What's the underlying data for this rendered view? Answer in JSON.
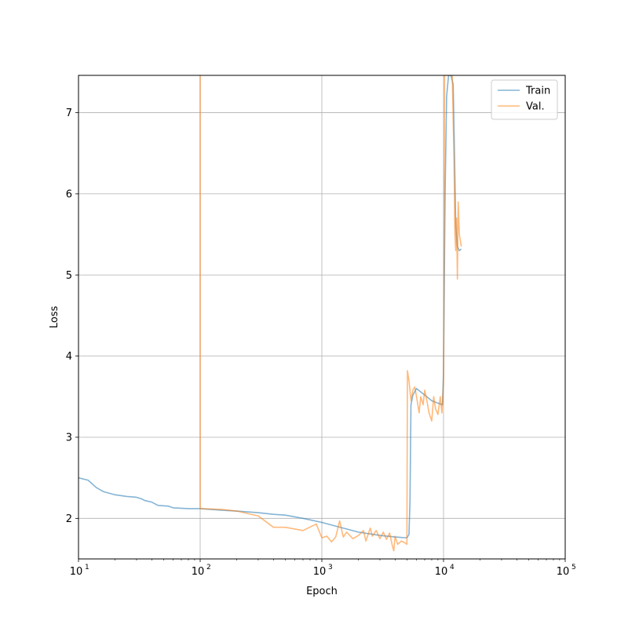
{
  "chart_data": {
    "type": "line",
    "xlabel": "Epoch",
    "ylabel": "Loss",
    "xscale": "log",
    "xlim": [
      10,
      100000
    ],
    "ylim": [
      1.5,
      7.46
    ],
    "grid": true,
    "legend_position": "top-right",
    "xticks": [
      {
        "value": 10,
        "label": "10",
        "exp": "1"
      },
      {
        "value": 100,
        "label": "10",
        "exp": "2"
      },
      {
        "value": 1000,
        "label": "10",
        "exp": "3"
      },
      {
        "value": 10000,
        "label": "10",
        "exp": "4"
      },
      {
        "value": 100000,
        "label": "10",
        "exp": "5"
      }
    ],
    "yticks": [
      {
        "value": 2,
        "label": "2"
      },
      {
        "value": 3,
        "label": "3"
      },
      {
        "value": 4,
        "label": "4"
      },
      {
        "value": 5,
        "label": "5"
      },
      {
        "value": 6,
        "label": "6"
      },
      {
        "value": 7,
        "label": "7"
      }
    ],
    "series": [
      {
        "name": "Train",
        "color": "#1f77b4",
        "points": [
          [
            10,
            2.5
          ],
          [
            12,
            2.47
          ],
          [
            14,
            2.38
          ],
          [
            16,
            2.33
          ],
          [
            20,
            2.29
          ],
          [
            25,
            2.27
          ],
          [
            30,
            2.26
          ],
          [
            33,
            2.24
          ],
          [
            35,
            2.22
          ],
          [
            40,
            2.2
          ],
          [
            45,
            2.16
          ],
          [
            55,
            2.15
          ],
          [
            60,
            2.13
          ],
          [
            80,
            2.12
          ],
          [
            100,
            2.12
          ],
          [
            150,
            2.1
          ],
          [
            200,
            2.09
          ],
          [
            300,
            2.07
          ],
          [
            400,
            2.05
          ],
          [
            500,
            2.04
          ],
          [
            700,
            2.0
          ],
          [
            1000,
            1.95
          ],
          [
            1500,
            1.88
          ],
          [
            2000,
            1.83
          ],
          [
            3000,
            1.79
          ],
          [
            4000,
            1.77
          ],
          [
            5000,
            1.76
          ],
          [
            5200,
            1.8
          ],
          [
            5300,
            2.2
          ],
          [
            5400,
            3.4
          ],
          [
            5600,
            3.52
          ],
          [
            6000,
            3.6
          ],
          [
            7000,
            3.52
          ],
          [
            8000,
            3.45
          ],
          [
            9000,
            3.42
          ],
          [
            9800,
            3.4
          ],
          [
            10000,
            3.8
          ],
          [
            10300,
            6.0
          ],
          [
            10600,
            7.2
          ],
          [
            11000,
            7.46
          ],
          [
            11500,
            7.46
          ],
          [
            12000,
            7.35
          ],
          [
            12300,
            6.5
          ],
          [
            12600,
            5.6
          ],
          [
            13000,
            5.35
          ],
          [
            13500,
            5.3
          ],
          [
            14000,
            5.32
          ]
        ]
      },
      {
        "name": "Val.",
        "color": "#ff7f0e",
        "points": [
          [
            100,
            7.46
          ],
          [
            100,
            2.12
          ],
          [
            150,
            2.11
          ],
          [
            200,
            2.09
          ],
          [
            300,
            2.03
          ],
          [
            400,
            1.89
          ],
          [
            500,
            1.89
          ],
          [
            700,
            1.85
          ],
          [
            900,
            1.93
          ],
          [
            1000,
            1.76
          ],
          [
            1100,
            1.78
          ],
          [
            1200,
            1.71
          ],
          [
            1300,
            1.77
          ],
          [
            1400,
            1.97
          ],
          [
            1500,
            1.77
          ],
          [
            1600,
            1.83
          ],
          [
            1800,
            1.75
          ],
          [
            2000,
            1.79
          ],
          [
            2200,
            1.85
          ],
          [
            2300,
            1.72
          ],
          [
            2500,
            1.88
          ],
          [
            2600,
            1.78
          ],
          [
            2800,
            1.85
          ],
          [
            3000,
            1.75
          ],
          [
            3200,
            1.83
          ],
          [
            3400,
            1.74
          ],
          [
            3600,
            1.82
          ],
          [
            3800,
            1.66
          ],
          [
            3900,
            1.6
          ],
          [
            4000,
            1.78
          ],
          [
            4200,
            1.68
          ],
          [
            4500,
            1.72
          ],
          [
            4800,
            1.7
          ],
          [
            5000,
            1.68
          ],
          [
            5050,
            3.82
          ],
          [
            5200,
            3.7
          ],
          [
            5400,
            3.45
          ],
          [
            5600,
            3.58
          ],
          [
            5800,
            3.62
          ],
          [
            6000,
            3.5
          ],
          [
            6300,
            3.3
          ],
          [
            6500,
            3.5
          ],
          [
            6800,
            3.4
          ],
          [
            7000,
            3.58
          ],
          [
            7300,
            3.45
          ],
          [
            7600,
            3.3
          ],
          [
            8000,
            3.2
          ],
          [
            8300,
            3.5
          ],
          [
            8600,
            3.35
          ],
          [
            9000,
            3.28
          ],
          [
            9400,
            3.5
          ],
          [
            9700,
            3.3
          ],
          [
            10000,
            3.65
          ],
          [
            10200,
            7.46
          ],
          [
            11200,
            7.46
          ],
          [
            11800,
            7.46
          ],
          [
            12200,
            6.4
          ],
          [
            12400,
            5.5
          ],
          [
            12600,
            5.3
          ],
          [
            12800,
            5.7
          ],
          [
            13000,
            4.95
          ],
          [
            13200,
            5.9
          ],
          [
            13500,
            5.5
          ],
          [
            14000,
            5.35
          ]
        ]
      }
    ]
  }
}
